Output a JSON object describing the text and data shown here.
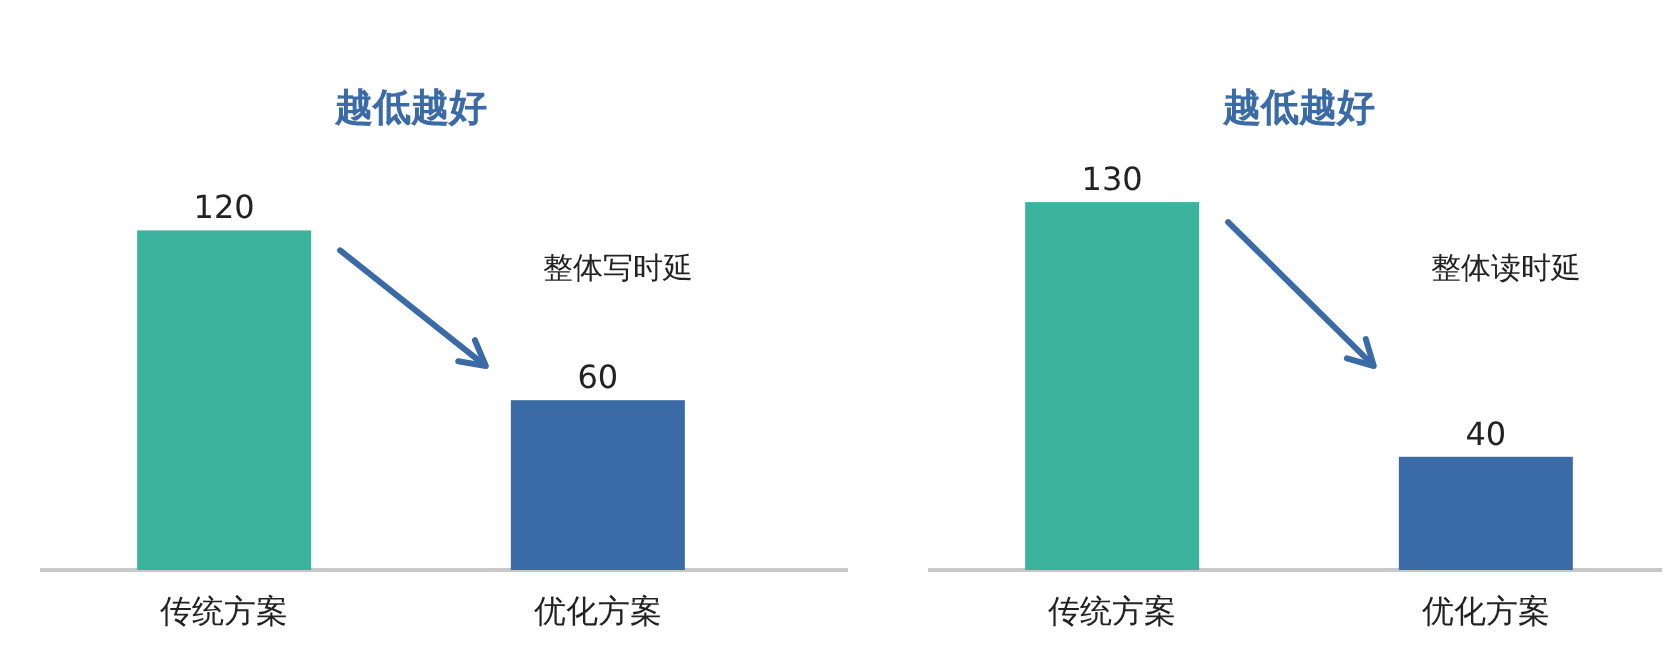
{
  "chart_data": [
    {
      "type": "bar",
      "title": "越低越好",
      "categories": [
        "传统方案",
        "优化方案"
      ],
      "values": [
        120,
        60
      ],
      "colors": [
        "#3cb39c",
        "#3a6ba6"
      ],
      "data_labels": true,
      "annotations": [
        "整体写时延"
      ]
    },
    {
      "type": "bar",
      "title": "越低越好",
      "categories": [
        "传统方案",
        "优化方案"
      ],
      "values": [
        130,
        40
      ],
      "colors": [
        "#3cb39c",
        "#3a6ba6"
      ],
      "data_labels": true,
      "annotations": [
        "整体读时延"
      ]
    }
  ]
}
